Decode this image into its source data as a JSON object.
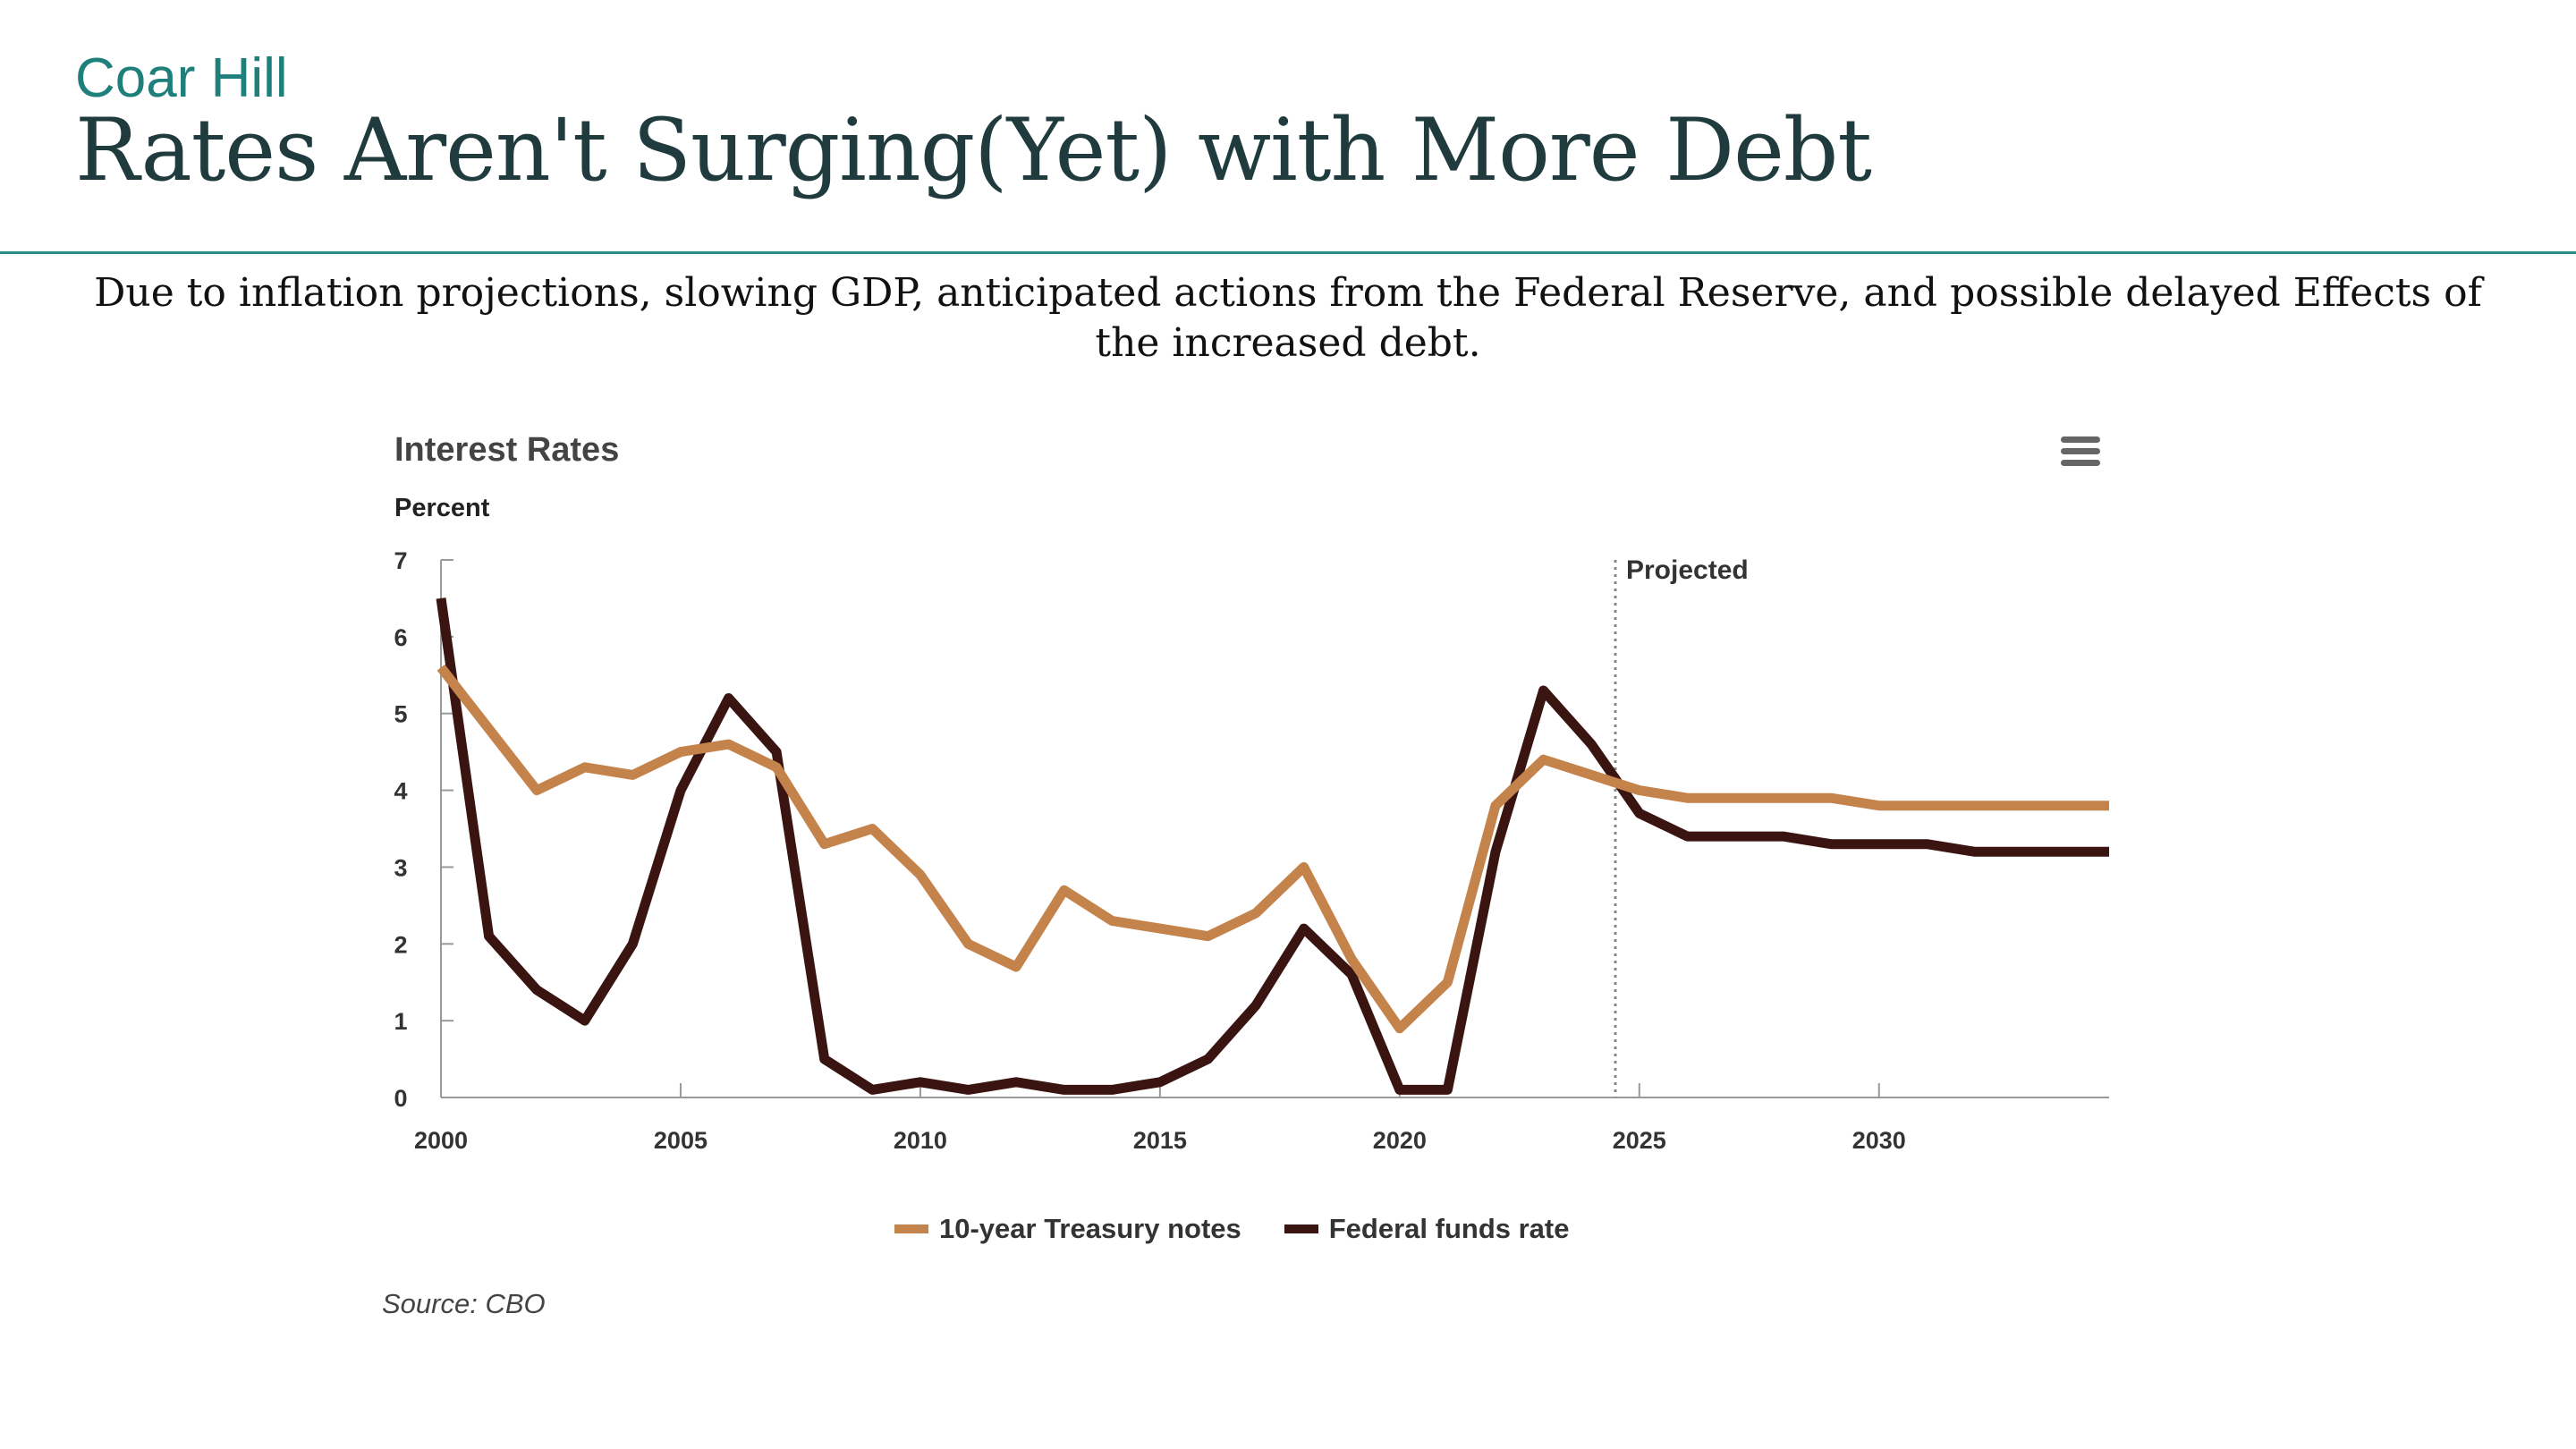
{
  "header": {
    "brand": "Coar Hill",
    "title": "Rates Aren't Surging(Yet) with More Debt",
    "subtitle": "Due to inflation projections, slowing GDP, anticipated actions from the Federal Reserve, and possible delayed Effects of the increased debt."
  },
  "menu_icon": "hamburger-menu-icon",
  "source": "Source: CBO",
  "colors": {
    "treasury": "#c5834c",
    "fedfunds": "#3a1410",
    "accent": "#1e7f7b"
  },
  "chart_data": {
    "type": "line",
    "title": "Interest Rates",
    "ylabel": "Percent",
    "xlabel": "",
    "xlim": [
      2000,
      2034.8
    ],
    "ylim": [
      0,
      7
    ],
    "x_ticks": [
      2000,
      2005,
      2010,
      2015,
      2020,
      2025,
      2030
    ],
    "y_ticks": [
      0,
      1,
      2,
      3,
      4,
      5,
      6,
      7
    ],
    "grid": false,
    "legend_position": "bottom",
    "annotations": [
      {
        "text": "Projected",
        "x": 2024.5
      }
    ],
    "x": [
      2000,
      2001,
      2002,
      2003,
      2004,
      2005,
      2006,
      2007,
      2008,
      2009,
      2010,
      2011,
      2012,
      2013,
      2014,
      2015,
      2016,
      2017,
      2018,
      2019,
      2020,
      2021,
      2022,
      2023,
      2024,
      2025,
      2026,
      2027,
      2028,
      2029,
      2030,
      2031,
      2032,
      2033,
      2034,
      2034.8
    ],
    "series": [
      {
        "name": "10-year Treasury notes",
        "values": [
          5.6,
          4.8,
          4.0,
          4.3,
          4.2,
          4.5,
          4.6,
          4.3,
          3.3,
          3.5,
          2.9,
          2.0,
          1.7,
          2.7,
          2.3,
          2.2,
          2.1,
          2.4,
          3.0,
          1.8,
          0.9,
          1.5,
          3.8,
          4.4,
          4.2,
          4.0,
          3.9,
          3.9,
          3.9,
          3.9,
          3.8,
          3.8,
          3.8,
          3.8,
          3.8,
          3.8
        ]
      },
      {
        "name": "Federal funds rate",
        "values": [
          6.5,
          2.1,
          1.4,
          1.0,
          2.0,
          4.0,
          5.2,
          4.5,
          0.5,
          0.1,
          0.2,
          0.1,
          0.2,
          0.1,
          0.1,
          0.2,
          0.5,
          1.2,
          2.2,
          1.6,
          0.1,
          0.1,
          3.2,
          5.3,
          4.6,
          3.7,
          3.4,
          3.4,
          3.4,
          3.3,
          3.3,
          3.3,
          3.2,
          3.2,
          3.2,
          3.2
        ]
      }
    ]
  }
}
